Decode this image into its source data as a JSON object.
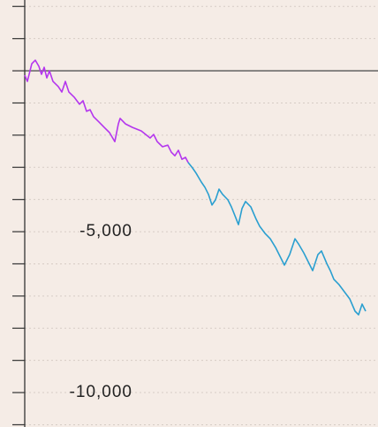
{
  "chart_data": {
    "type": "line",
    "xlim": [
      0,
      100
    ],
    "ylim": [
      -11070,
      2200
    ],
    "yticks": [
      {
        "value": -5000,
        "label": "-5,000"
      },
      {
        "value": -10000,
        "label": "-10,000"
      }
    ],
    "minor_yticks": [
      2000,
      1000,
      0,
      -1000,
      -2000,
      -3000,
      -4000,
      -5000,
      -6000,
      -7000,
      -8000,
      -9000,
      -10000,
      -11000
    ],
    "grid": true,
    "zero_line": true,
    "series": [
      {
        "color": "#b436ee",
        "x": [
          0,
          0.75,
          2,
          3,
          4,
          4.75,
          5.5,
          6.25,
          7,
          8,
          9.5,
          10.5,
          11.5,
          12.5,
          14,
          15.5,
          16.5,
          17.5,
          18.5,
          19.5,
          21,
          22.5,
          24,
          25.5,
          26.5,
          27,
          28.5,
          30.5,
          33,
          35.5,
          36.5,
          37.5,
          39,
          40.5,
          41.5,
          42.5,
          43.5,
          44.5,
          45.5,
          46.25
        ],
        "values": [
          -135,
          -330,
          220,
          330,
          140,
          -110,
          110,
          -220,
          0,
          -330,
          -490,
          -660,
          -330,
          -660,
          -820,
          -1040,
          -930,
          -1260,
          -1210,
          -1430,
          -1590,
          -1760,
          -1920,
          -2200,
          -1650,
          -1480,
          -1650,
          -1760,
          -1870,
          -2090,
          -1980,
          -2200,
          -2360,
          -2310,
          -2530,
          -2640,
          -2470,
          -2750,
          -2690,
          -2850
        ]
      },
      {
        "color": "#2a9fd0",
        "x": [
          46.25,
          47.5,
          48.5,
          50,
          51,
          52,
          53,
          54,
          55,
          56,
          57.5,
          58.5,
          59.5,
          60.5,
          61.5,
          62.5,
          64,
          65.5,
          66.5,
          68,
          69.5,
          71,
          72.5,
          73.5,
          75,
          76.5,
          77.5,
          79,
          80.5,
          81.5,
          83,
          84,
          85.5,
          86.5,
          87.5,
          89,
          90.5,
          92,
          93.5,
          94.5,
          95.5,
          96.5
        ],
        "values": [
          -2850,
          -3020,
          -3180,
          -3460,
          -3620,
          -3840,
          -4170,
          -4010,
          -3680,
          -3840,
          -4010,
          -4230,
          -4500,
          -4780,
          -4280,
          -4060,
          -4230,
          -4610,
          -4830,
          -5050,
          -5220,
          -5490,
          -5820,
          -6040,
          -5710,
          -5220,
          -5380,
          -5660,
          -5990,
          -6210,
          -5710,
          -5600,
          -5990,
          -6210,
          -6480,
          -6650,
          -6870,
          -7090,
          -7470,
          -7580,
          -7250,
          -7470
        ]
      }
    ]
  }
}
